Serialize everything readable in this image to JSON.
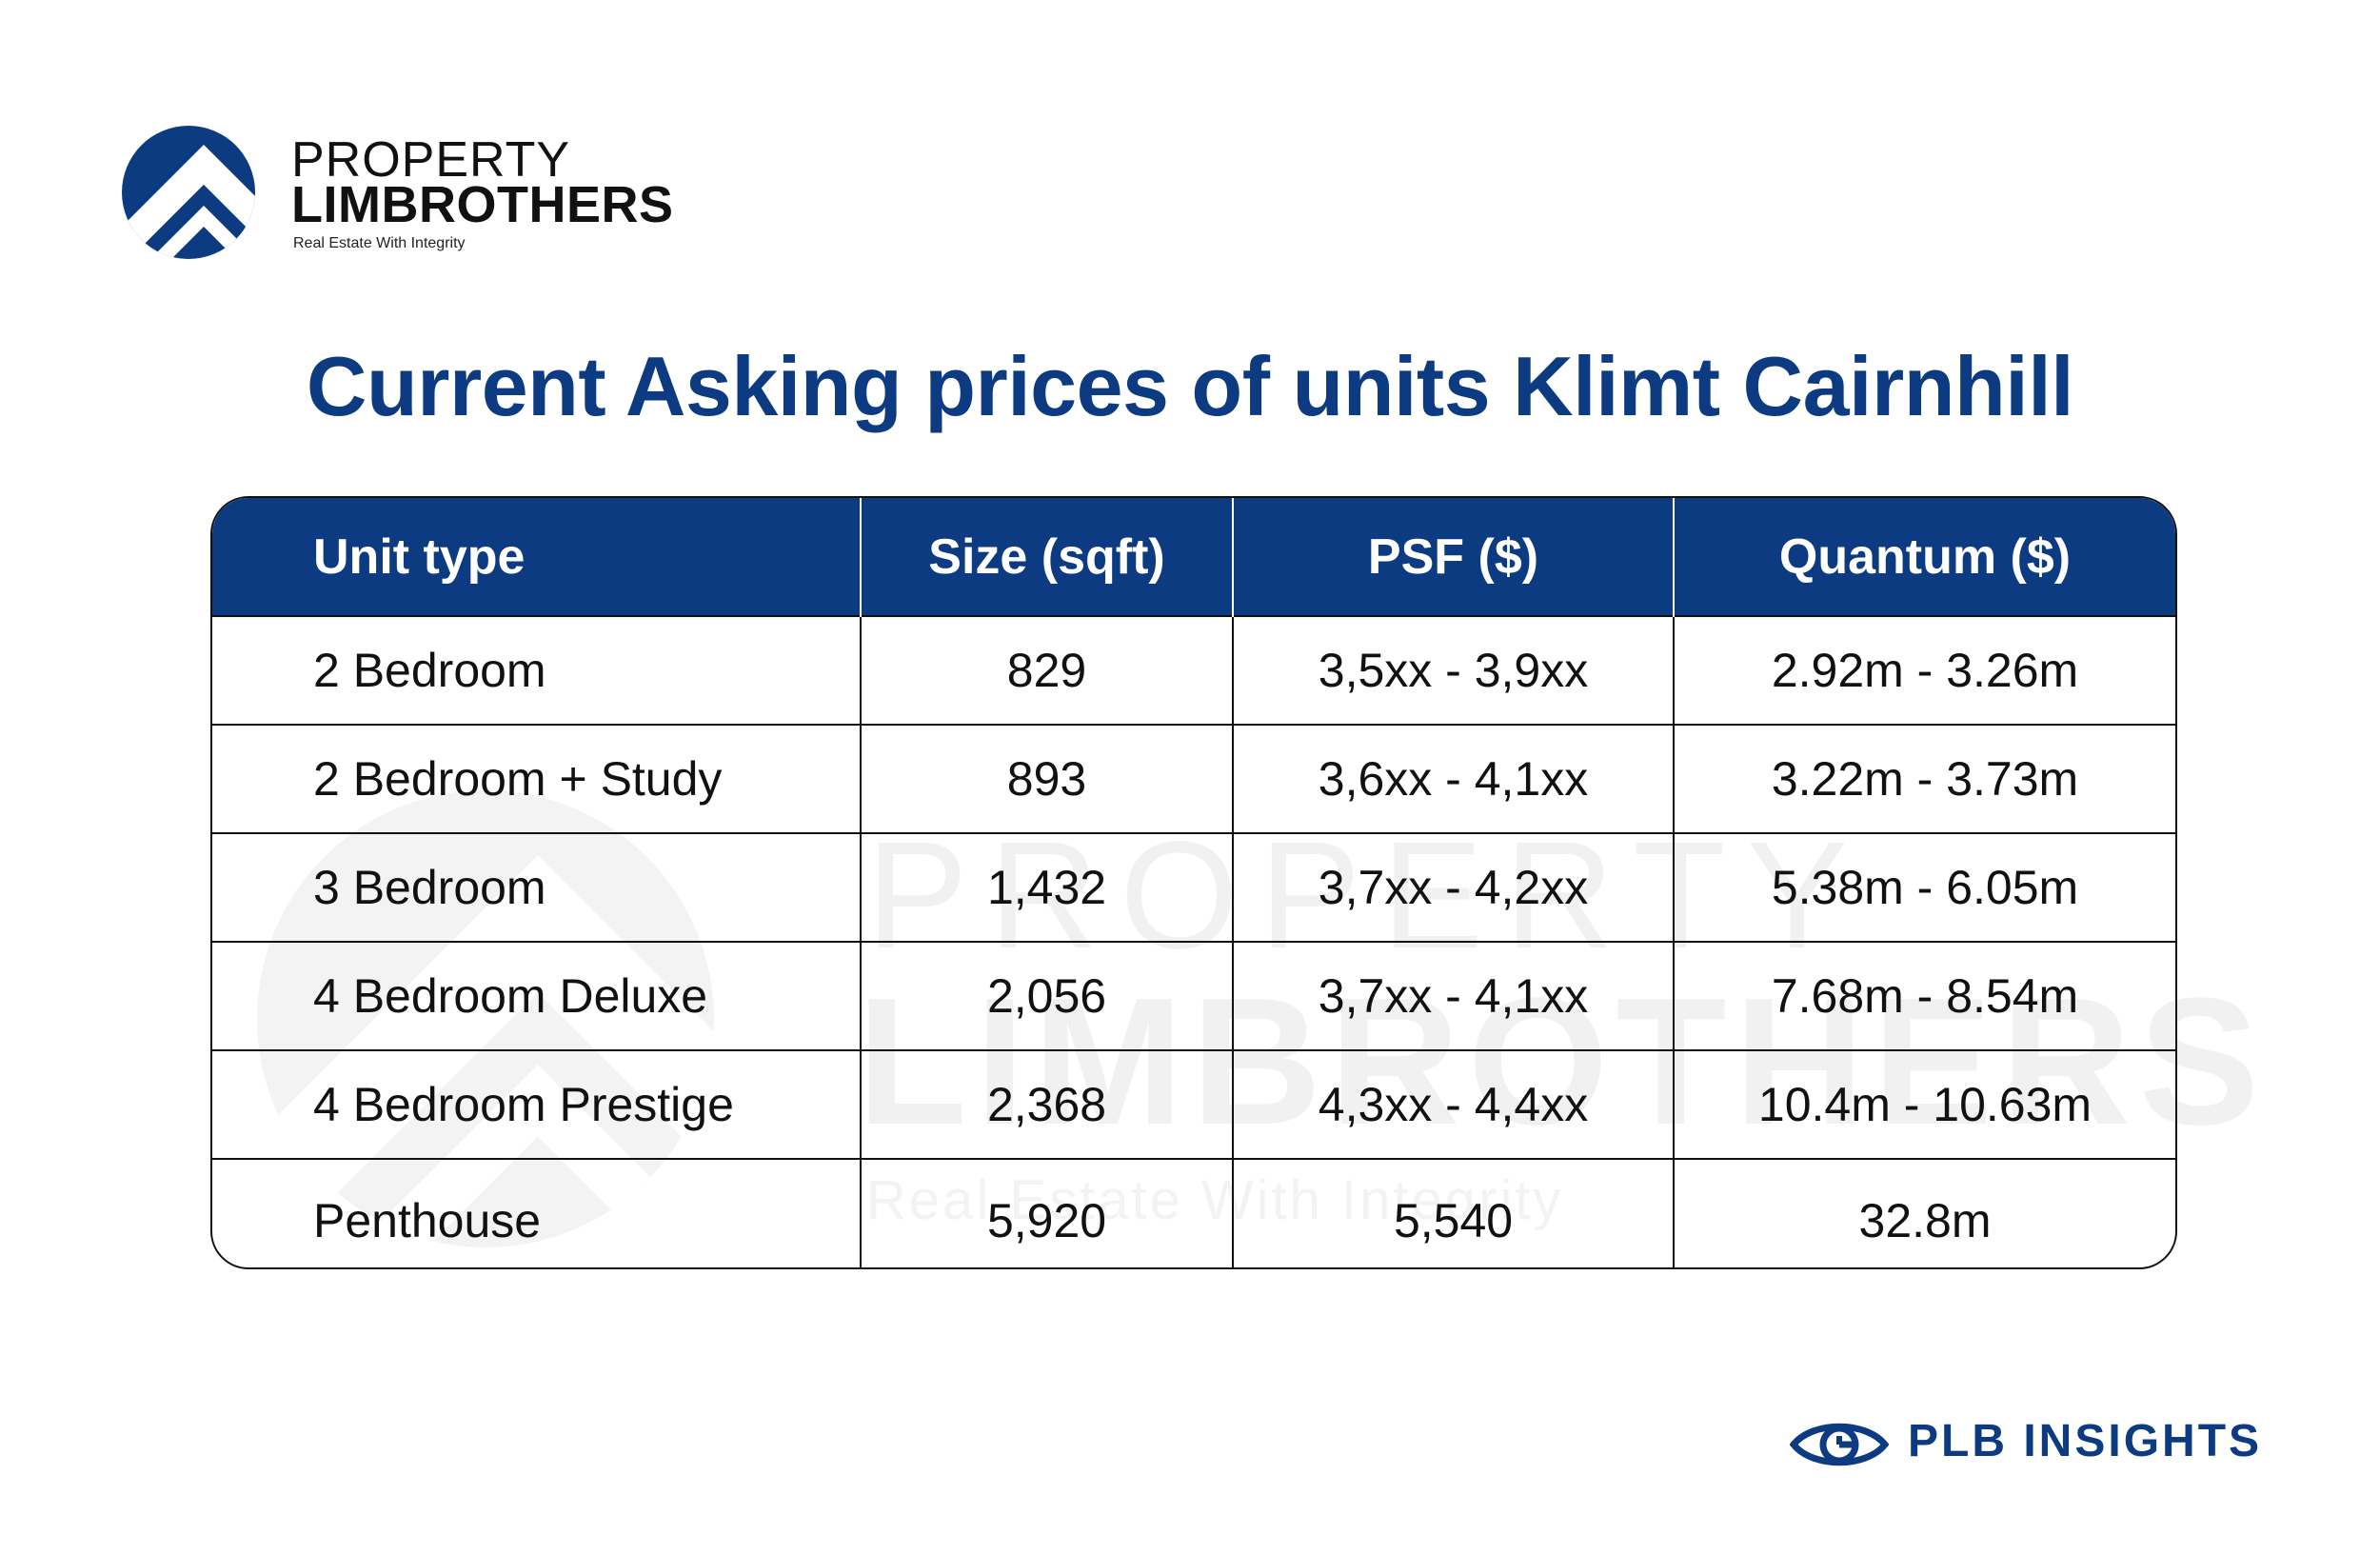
{
  "brand": {
    "line1": "PROPERTY",
    "line2": "LIMBROTHERS",
    "tagline": "Real Estate With Integrity",
    "color": "#0d3b82",
    "logo_icon": "house-roof-circle-logo"
  },
  "title": "Current Asking prices of units Klimt Cairnhill",
  "table": {
    "headers": [
      "Unit type",
      "Size (sqft)",
      "PSF ($)",
      "Quantum ($)"
    ],
    "rows": [
      [
        "2 Bedroom",
        "829",
        "3,5xx - 3,9xx",
        "2.92m - 3.26m"
      ],
      [
        "2 Bedroom + Study",
        "893",
        "3,6xx - 4,1xx",
        "3.22m - 3.73m"
      ],
      [
        "3 Bedroom",
        "1,432",
        "3,7xx - 4,2xx",
        "5.38m - 6.05m"
      ],
      [
        "4 Bedroom Deluxe",
        "2,056",
        "3,7xx - 4,1xx",
        "7.68m - 8.54m"
      ],
      [
        "4 Bedroom Prestige",
        "2,368",
        "4,3xx - 4,4xx",
        "10.4m - 10.63m"
      ],
      [
        "Penthouse",
        "5,920",
        "5,540",
        "32.8m"
      ]
    ]
  },
  "watermark": {
    "line1": "PROPERTY",
    "line2": "LIMBROTHERS",
    "line3": "Real Estate With Integrity"
  },
  "footer": {
    "label": "PLB INSIGHTS",
    "icon": "eye-icon"
  }
}
